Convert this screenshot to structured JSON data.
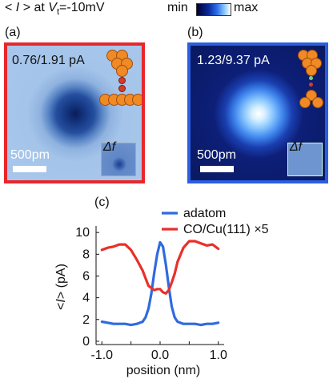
{
  "header": {
    "prefix": "< ",
    "symbol": "I",
    "mid": " > at ",
    "v": "V",
    "v_sub": "t",
    "suffix": "=-10mV"
  },
  "colorbar": {
    "min_label": "min",
    "max_label": "max"
  },
  "panel_a": {
    "label": "(a)",
    "current_text": "0.76/1.91 pA",
    "scalebar_label": "500pm",
    "inset_label": "Δf",
    "border_color": "#e8272a"
  },
  "panel_b": {
    "label": "(b)",
    "current_text": "1.23/9.37 pA",
    "scalebar_label": "500pm",
    "inset_label": "Δf",
    "border_color": "#2c5fe0"
  },
  "chart_data": {
    "type": "line",
    "panel_label": "(c)",
    "xlabel": "position (nm)",
    "ylabel_parts": [
      "<",
      "I",
      ">",
      " (pA)"
    ],
    "xlim": [
      -1.1,
      1.1
    ],
    "ylim": [
      -0.3,
      10.6
    ],
    "xticks": [
      -1.0,
      -0.5,
      0.0,
      0.5,
      1.0
    ],
    "xtick_labels": [
      "-1.0",
      "",
      "0.0",
      "",
      "1.0"
    ],
    "yticks": [
      0,
      2,
      4,
      6,
      8,
      10
    ],
    "ytick_labels": [
      "0",
      "2",
      "4",
      "6",
      "8",
      "10"
    ],
    "legend_position": "top-right",
    "series": [
      {
        "name": "adatom",
        "color": "#2f6bde",
        "x": [
          -1.0,
          -0.9,
          -0.8,
          -0.7,
          -0.6,
          -0.5,
          -0.4,
          -0.3,
          -0.25,
          -0.2,
          -0.15,
          -0.1,
          -0.05,
          0.0,
          0.05,
          0.1,
          0.15,
          0.2,
          0.25,
          0.3,
          0.4,
          0.5,
          0.6,
          0.7,
          0.8,
          0.9,
          1.0
        ],
        "y": [
          1.8,
          1.7,
          1.6,
          1.6,
          1.6,
          1.5,
          1.6,
          1.8,
          2.2,
          3.0,
          4.4,
          6.3,
          8.0,
          9.1,
          8.7,
          7.0,
          5.0,
          3.2,
          2.2,
          1.8,
          1.6,
          1.6,
          1.6,
          1.5,
          1.6,
          1.6,
          1.7
        ]
      },
      {
        "name": "CO/Cu(111) ×5",
        "color": "#e8302a",
        "x": [
          -1.0,
          -0.9,
          -0.8,
          -0.7,
          -0.6,
          -0.5,
          -0.4,
          -0.3,
          -0.25,
          -0.2,
          -0.15,
          -0.1,
          -0.05,
          0.0,
          0.05,
          0.1,
          0.15,
          0.2,
          0.25,
          0.3,
          0.4,
          0.5,
          0.6,
          0.7,
          0.8,
          0.9,
          1.0
        ],
        "y": [
          8.4,
          8.6,
          8.7,
          8.9,
          8.9,
          8.4,
          7.5,
          6.5,
          5.8,
          5.1,
          4.9,
          4.7,
          4.8,
          4.8,
          4.5,
          4.4,
          4.7,
          5.4,
          6.2,
          7.3,
          8.6,
          9.2,
          9.2,
          9.0,
          8.8,
          8.9,
          8.5
        ]
      }
    ]
  }
}
